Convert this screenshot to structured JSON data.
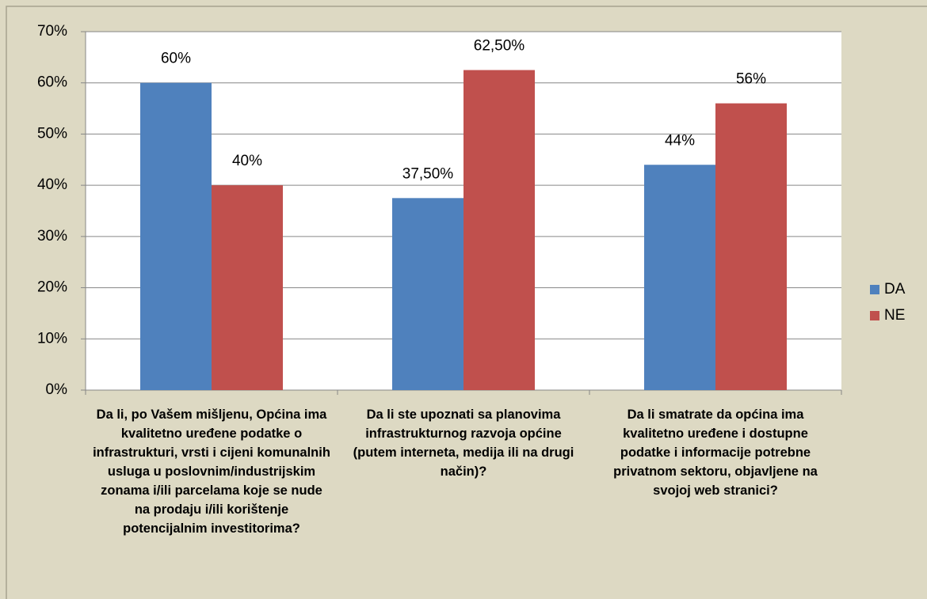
{
  "chart_data": {
    "type": "bar",
    "categories": [
      "Da li, po Vašem mišljenu, Općina ima kvalitetno uređene podatke o infrastrukturi, vrsti i cijeni komunalnih usluga u poslovnim/industrijskim zonama i/ili parcelama koje se nude na prodaju i/ili korištenje potencijalnim investitorima?",
      "Da li ste upoznati sa planovima infrastrukturnog razvoja općine (putem interneta, medija ili na drugi način)?",
      "Da li smatrate da općina ima kvalitetno uređene i dostupne podatke i informacije potrebne privatnom sektoru, objavljene na svojoj web stranici?"
    ],
    "series": [
      {
        "name": "DA",
        "color": "#4f81bd",
        "values": [
          60,
          37.5,
          44
        ],
        "value_labels": [
          "60%",
          "37,50%",
          "44%"
        ]
      },
      {
        "name": "NE",
        "color": "#c0504d",
        "values": [
          40,
          62.5,
          56
        ],
        "value_labels": [
          "40%",
          "62,50%",
          "56%"
        ]
      }
    ],
    "ylim": [
      0,
      70
    ],
    "yticks": [
      {
        "value": 0,
        "label": "0%"
      },
      {
        "value": 10,
        "label": "10%"
      },
      {
        "value": 20,
        "label": "20%"
      },
      {
        "value": 30,
        "label": "30%"
      },
      {
        "value": 40,
        "label": "40%"
      },
      {
        "value": 50,
        "label": "50%"
      },
      {
        "value": 60,
        "label": "60%"
      },
      {
        "value": 70,
        "label": "70%"
      }
    ],
    "grid": true,
    "legend": "right"
  }
}
